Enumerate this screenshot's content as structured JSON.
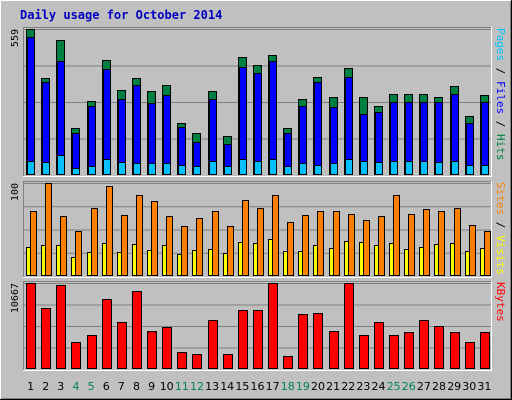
{
  "chart_data": {
    "type": "bar",
    "title": "Daily usage for October 2014",
    "categories": [
      "1",
      "2",
      "3",
      "4",
      "5",
      "6",
      "7",
      "8",
      "9",
      "10",
      "11",
      "12",
      "13",
      "14",
      "15",
      "16",
      "17",
      "18",
      "19",
      "20",
      "21",
      "22",
      "23",
      "24",
      "25",
      "26",
      "27",
      "28",
      "29",
      "30",
      "31"
    ],
    "weekend_days": [
      "4",
      "5",
      "11",
      "12",
      "18",
      "19",
      "25",
      "26"
    ],
    "colors": {
      "background": "#c0c0c0",
      "title": "#0000c0",
      "hits": "#008040",
      "files": "#0000ff",
      "pages": "#00c0ff",
      "visits": "#ffff00",
      "sites": "#ff8000",
      "kbytes": "#ff0000",
      "weekend_label": "#00805c",
      "weekday_label": "#000000"
    },
    "panels": [
      {
        "id": "top",
        "ymax_label": "559",
        "ymax": 559,
        "gridlines": 4,
        "ylabel_parts": [
          {
            "text": "Pages",
            "color": "#00c0ff"
          },
          {
            "text": " / ",
            "color": "#000000"
          },
          {
            "text": "Files",
            "color": "#0000ff"
          },
          {
            "text": " / ",
            "color": "#000000"
          },
          {
            "text": "Hits",
            "color": "#008040"
          }
        ],
        "series": [
          {
            "name": "Hits",
            "color": "#008040",
            "values": [
              559,
              370,
              515,
              180,
              285,
              440,
              325,
              370,
              320,
              345,
              200,
              160,
              320,
              150,
              450,
              420,
              460,
              180,
              290,
              375,
              300,
              410,
              300,
              265,
              310,
              310,
              310,
              300,
              340,
              225,
              305
            ]
          },
          {
            "name": "Files",
            "color": "#0000ff",
            "values": [
              530,
              355,
              435,
              160,
              265,
              405,
              290,
              345,
              275,
              305,
              185,
              125,
              290,
              120,
              415,
              390,
              435,
              160,
              265,
              355,
              260,
              375,
              235,
              240,
              280,
              280,
              280,
              280,
              310,
              200,
              280
            ]
          },
          {
            "name": "Pages",
            "color": "#00c0ff",
            "values": [
              55,
              50,
              75,
              25,
              35,
              60,
              50,
              45,
              45,
              45,
              40,
              35,
              55,
              35,
              60,
              55,
              60,
              35,
              45,
              40,
              45,
              60,
              55,
              50,
              55,
              55,
              55,
              50,
              55,
              40,
              40
            ]
          }
        ]
      },
      {
        "id": "middle",
        "ymax_label": "100",
        "ymax": 100,
        "gridlines": 4,
        "ylabel_parts": [
          {
            "text": "Sites",
            "color": "#ff8000"
          },
          {
            "text": " / ",
            "color": "#000000"
          },
          {
            "text": "Visits",
            "color": "#ffff00"
          }
        ],
        "series": [
          {
            "name": "Sites",
            "color": "#ff8000",
            "values": [
              70,
              100,
              64,
              48,
              73,
              97,
              66,
              87,
              81,
              64,
              54,
              62,
              70,
              54,
              82,
              73,
              87,
              58,
              66,
              70,
              70,
              67,
              60,
              65,
              87,
              67,
              72,
              70,
              73,
              55,
              48
            ]
          },
          {
            "name": "Visits",
            "color": "#ffff00",
            "values": [
              31,
              33,
              33,
              20,
              26,
              36,
              26,
              34,
              28,
              33,
              24,
              28,
              29,
              25,
              37,
              36,
              40,
              27,
              27,
              33,
              30,
              38,
              37,
              33,
              36,
              29,
              31,
              34,
              36,
              27,
              30
            ]
          }
        ]
      },
      {
        "id": "bottom",
        "ymax_label": "10667",
        "ymax": 10667,
        "gridlines": 4,
        "ylabel_parts": [
          {
            "text": "KBytes",
            "color": "#ff0000"
          }
        ],
        "series": [
          {
            "name": "KBytes",
            "color": "#ff0000",
            "values": [
              10667,
              7560,
              10400,
              3350,
              4160,
              8660,
              5770,
              9730,
              4710,
              5170,
              2150,
              1870,
              6070,
              1870,
              7360,
              7360,
              10667,
              1660,
              6820,
              6920,
              4690,
              10667,
              4250,
              5870,
              4250,
              4610,
              6050,
              5300,
              4610,
              3290,
              4610
            ]
          }
        ]
      }
    ]
  }
}
